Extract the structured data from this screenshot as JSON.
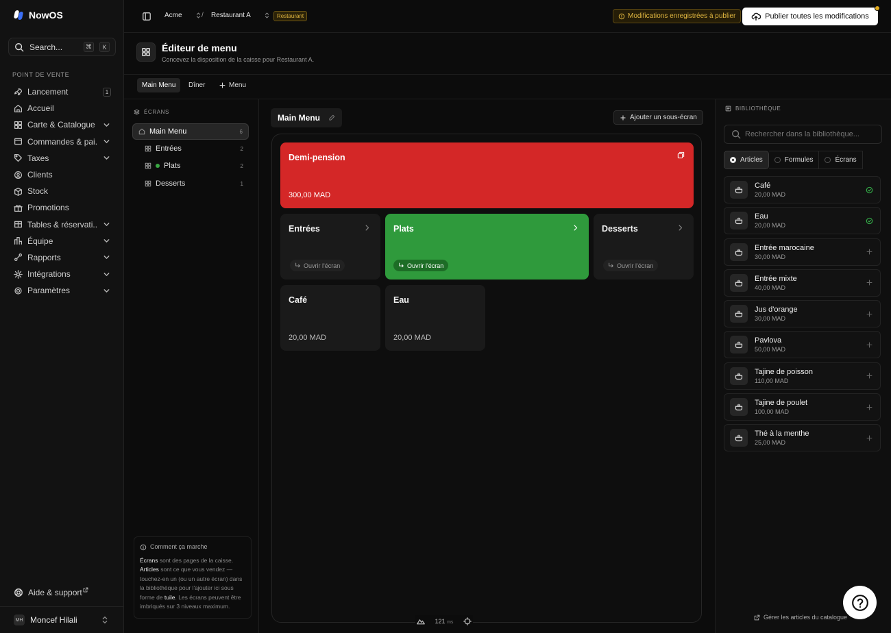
{
  "brand": {
    "name": "NowOS"
  },
  "search": {
    "label": "Search...",
    "kbd1": "⌘",
    "kbd2": "K"
  },
  "sidebar": {
    "section": "POINT DE VENTE",
    "items": [
      {
        "label": "Lancement",
        "icon": "rocket-icon",
        "badge": "1"
      },
      {
        "label": "Accueil",
        "icon": "home-icon"
      },
      {
        "label": "Carte & Catalogue",
        "icon": "grid-icon",
        "expandable": true
      },
      {
        "label": "Commandes & pai...",
        "icon": "orders-icon",
        "expandable": true
      },
      {
        "label": "Taxes",
        "icon": "tag-icon",
        "expandable": true
      },
      {
        "label": "Clients",
        "icon": "users-icon"
      },
      {
        "label": "Stock",
        "icon": "box-icon"
      },
      {
        "label": "Promotions",
        "icon": "gift-icon"
      },
      {
        "label": "Tables & réservati...",
        "icon": "table-icon",
        "expandable": true
      },
      {
        "label": "Équipe",
        "icon": "team-icon",
        "expandable": true
      },
      {
        "label": "Rapports",
        "icon": "chart-icon",
        "expandable": true
      },
      {
        "label": "Intégrations",
        "icon": "plug-icon",
        "expandable": true
      },
      {
        "label": "Paramètres",
        "icon": "gear-icon",
        "expandable": true
      }
    ],
    "help": "Aide & support",
    "user": {
      "initials": "MH",
      "name": "Moncef Hilali"
    }
  },
  "header": {
    "org": "Acme",
    "separator": "/",
    "location": "Restaurant A",
    "location_badge": "Restaurant",
    "pending": "Modifications enregistrées à publier",
    "publish": "Publier toutes les modifications"
  },
  "page": {
    "title": "Éditeur de menu",
    "subtitle": "Concevez la disposition de la caisse pour Restaurant A."
  },
  "tabs": [
    {
      "label": "Main Menu",
      "active": true
    },
    {
      "label": "Dîner"
    },
    {
      "label": "Menu",
      "add": true
    }
  ],
  "screens": {
    "label": "ÉCRANS",
    "items": [
      {
        "label": "Main Menu",
        "count": "6"
      },
      {
        "label": "Entrées",
        "count": "2"
      },
      {
        "label": "Plats",
        "count": "2"
      },
      {
        "label": "Desserts",
        "count": "1"
      }
    ],
    "howto": {
      "title": "Comment ça marche",
      "w1": "Écrans",
      "t1": " sont des pages de la caisse. ",
      "w2": "Articles",
      "t2": " sont ce que vous vendez — touchez-en un (ou un autre écran) dans la bibliothèque pour l'ajouter ici sous forme de ",
      "w3": "tuile",
      "t3": ". Les écrans peuvent être imbriqués sur 3 niveaux maximum."
    }
  },
  "canvas": {
    "title": "Main Menu",
    "add_sub": "Ajouter un sous-écran",
    "open_label": "Ouvrir l'écran",
    "tiles": [
      {
        "name": "Demi-pension",
        "price": "300,00 MAD"
      },
      {
        "name": "Entrées"
      },
      {
        "name": "Plats"
      },
      {
        "name": "Desserts"
      },
      {
        "name": "Café",
        "price": "20,00 MAD"
      },
      {
        "name": "Eau",
        "price": "20,00 MAD"
      }
    ],
    "timing_value": "121",
    "timing_unit": "ms"
  },
  "library": {
    "label": "BIBLIOTHÈQUE",
    "search_placeholder": "Rechercher dans la bibliothèque...",
    "tabs": [
      "Articles",
      "Formules",
      "Écrans"
    ],
    "items": [
      {
        "name": "Café",
        "price": "20,00 MAD",
        "added": true
      },
      {
        "name": "Eau",
        "price": "20,00 MAD",
        "added": true
      },
      {
        "name": "Entrée marocaine",
        "price": "30,00 MAD"
      },
      {
        "name": "Entrée mixte",
        "price": "40,00 MAD"
      },
      {
        "name": "Jus d'orange",
        "price": "30,00 MAD"
      },
      {
        "name": "Pavlova",
        "price": "50,00 MAD"
      },
      {
        "name": "Tajine de poisson",
        "price": "110,00 MAD"
      },
      {
        "name": "Tajine de poulet",
        "price": "100,00 MAD"
      },
      {
        "name": "Thé à la menthe",
        "price": "25,00 MAD"
      }
    ],
    "manage": "Gérer les articles du catalogue"
  },
  "colors": {
    "red_tile": "#d42727",
    "green_tile": "#2f9a3c",
    "accent_warning": "#e0b640"
  }
}
